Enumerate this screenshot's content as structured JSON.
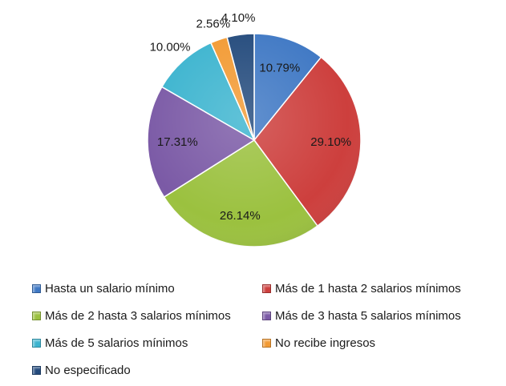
{
  "chart_data": {
    "type": "pie",
    "title": "",
    "legend_position": "bottom",
    "slices": [
      {
        "label": "Hasta un salario mínimo",
        "value": 10.79,
        "display": "10.79%",
        "color": "#3f78c4"
      },
      {
        "label": "Más de 1 hasta 2 salarios mínimos",
        "value": 29.1,
        "display": "29.10%",
        "color": "#cd3f3d"
      },
      {
        "label": "Más de 2 hasta 3 salarios mínimos",
        "value": 26.14,
        "display": "26.14%",
        "color": "#9bc13f"
      },
      {
        "label": "Más de 3 hasta 5 salarios mínimos",
        "value": 17.31,
        "display": "17.31%",
        "color": "#7b5aa6"
      },
      {
        "label": "Más de 5 salarios mínimos",
        "value": 10.0,
        "display": "10.00%",
        "color": "#3cb4cf"
      },
      {
        "label": "No recibe ingresos",
        "value": 2.56,
        "display": "2.56%",
        "color": "#f29a33"
      },
      {
        "label": "No especificado",
        "value": 4.1,
        "display": "4.10%",
        "color": "#234a7c"
      }
    ]
  }
}
